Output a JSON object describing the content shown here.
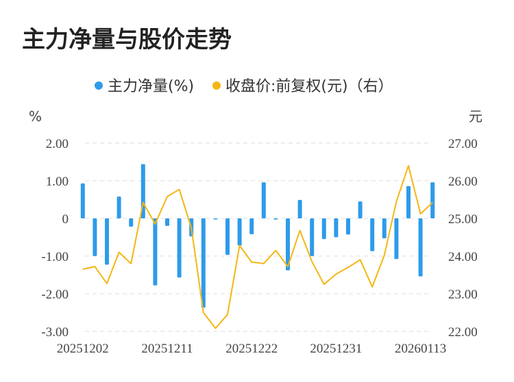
{
  "title": "主力净量与股价走势",
  "colors": {
    "bar": "#2E9BEA",
    "line": "#F5B614",
    "grid": "#dddddd"
  },
  "chart_data": {
    "type": "bar+line",
    "legend": [
      {
        "label": "主力净量(%)",
        "color": "#2E9BEA"
      },
      {
        "label": "收盘价:前复权(元)（右）",
        "color": "#F5B614"
      }
    ],
    "legend_position": "top-center",
    "y_left_unit": "%",
    "y_right_unit": "元",
    "y_left_ticks": [
      "2.00",
      "1.00",
      "0",
      "-1.00",
      "-2.00",
      "-3.00"
    ],
    "y_right_ticks": [
      "27.00",
      "26.00",
      "25.00",
      "24.00",
      "23.00",
      "22.00"
    ],
    "y_left_range": [
      -3,
      2
    ],
    "y_right_range": [
      22,
      27
    ],
    "x_tick_labels": [
      "20251202",
      "20251211",
      "20251222",
      "20251231",
      "20260113"
    ],
    "x_tick_indices": [
      0,
      7,
      14,
      21,
      28
    ],
    "grid": "horizontal-dashed",
    "series": [
      {
        "name": "主力净量(%)",
        "kind": "bar",
        "axis": "left",
        "values": [
          0.93,
          -1.0,
          -1.23,
          0.58,
          -0.22,
          1.44,
          -1.78,
          -0.2,
          -1.57,
          -0.48,
          -2.37,
          -0.02,
          -0.97,
          -0.72,
          -0.42,
          0.96,
          -0.03,
          -1.38,
          0.49,
          -1.0,
          -0.55,
          -0.5,
          -0.43,
          0.45,
          -0.87,
          -0.53,
          -1.08,
          0.86,
          -1.54,
          0.96
        ]
      },
      {
        "name": "收盘价:前复权(元)（右）",
        "kind": "line",
        "axis": "right",
        "values": [
          23.65,
          23.72,
          23.27,
          24.1,
          23.8,
          25.42,
          24.85,
          25.58,
          25.77,
          24.75,
          22.5,
          22.08,
          22.45,
          24.28,
          23.84,
          23.8,
          24.15,
          23.72,
          24.68,
          23.85,
          23.25,
          23.52,
          23.7,
          23.9,
          23.18,
          24.02,
          25.45,
          26.4,
          25.12,
          25.42
        ]
      }
    ]
  }
}
